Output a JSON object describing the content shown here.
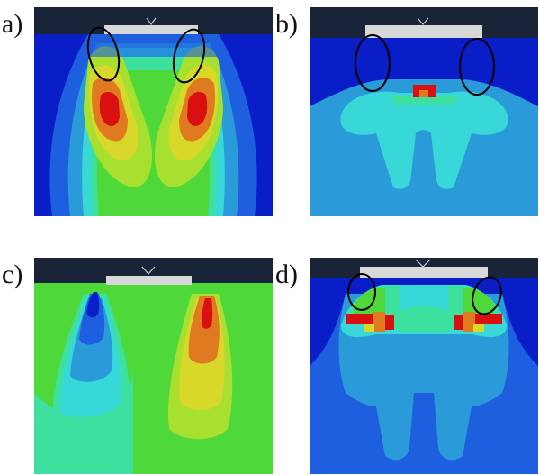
{
  "panels": [
    {
      "label": "a)"
    },
    {
      "label": "b)"
    },
    {
      "label": "c)"
    },
    {
      "label": "d)"
    }
  ],
  "colors": {
    "blue": "#0a1ec8",
    "mid_blue": "#1e5fe0",
    "light_blue": "#2a9ad8",
    "cyan": "#38d8d8",
    "green_cyan": "#3ee0a0",
    "green": "#4ed83a",
    "yellow_green": "#a8e030",
    "yellow": "#d8d82a",
    "orange": "#e07a20",
    "red": "#d81010",
    "indenter_bar": "#1a2438",
    "indenter_tip": "#d8d8d8",
    "ellipse": "#000000"
  }
}
